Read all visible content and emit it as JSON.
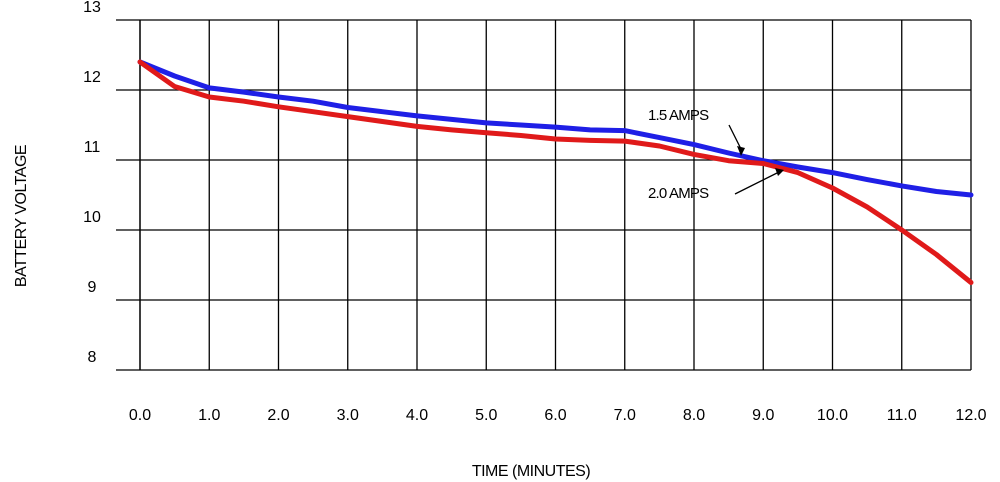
{
  "chart_data": {
    "type": "line",
    "title": "",
    "xlabel": "TIME (MINUTES)",
    "ylabel": "BATTERY  VOLTAGE",
    "xlim": [
      0,
      12
    ],
    "ylim": [
      8,
      13
    ],
    "x_tick_labels": [
      "0.0",
      "1.0",
      "2.0",
      "3.0",
      "4.0",
      "5.0",
      "6.0",
      "7.0",
      "8.0",
      "9.0",
      "10.0",
      "11.0",
      "12.0"
    ],
    "y_tick_labels": [
      "8",
      "9",
      "10",
      "11",
      "12",
      "13"
    ],
    "grid": true,
    "series": [
      {
        "name": "1.5 AMPS",
        "color": "#1f1fe6",
        "x": [
          0,
          0.5,
          1,
          1.5,
          2,
          2.5,
          3,
          3.5,
          4,
          4.5,
          5,
          5.5,
          6,
          6.5,
          7,
          7.5,
          8,
          8.5,
          9,
          9.5,
          10,
          10.5,
          11,
          11.5,
          12
        ],
        "y": [
          12.4,
          12.2,
          12.03,
          11.97,
          11.9,
          11.84,
          11.75,
          11.69,
          11.63,
          11.58,
          11.53,
          11.5,
          11.47,
          11.43,
          11.42,
          11.32,
          11.22,
          11.1,
          10.99,
          10.9,
          10.82,
          10.72,
          10.63,
          10.55,
          10.5
        ]
      },
      {
        "name": "2.0 AMPS",
        "color": "#e01a1a",
        "x": [
          0,
          0.5,
          1,
          1.5,
          2,
          2.5,
          3,
          3.5,
          4,
          4.5,
          5,
          5.5,
          6,
          6.5,
          7,
          7.5,
          8,
          8.5,
          9,
          9.5,
          10,
          10.5,
          11,
          11.5,
          12
        ],
        "y": [
          12.4,
          12.05,
          11.9,
          11.84,
          11.76,
          11.69,
          11.62,
          11.55,
          11.48,
          11.43,
          11.39,
          11.35,
          11.3,
          11.28,
          11.27,
          11.2,
          11.08,
          10.99,
          10.95,
          10.82,
          10.6,
          10.33,
          10.0,
          9.65,
          9.25
        ]
      }
    ],
    "annotations": [
      "1.5 AMPS",
      "2.0 AMPS"
    ]
  }
}
